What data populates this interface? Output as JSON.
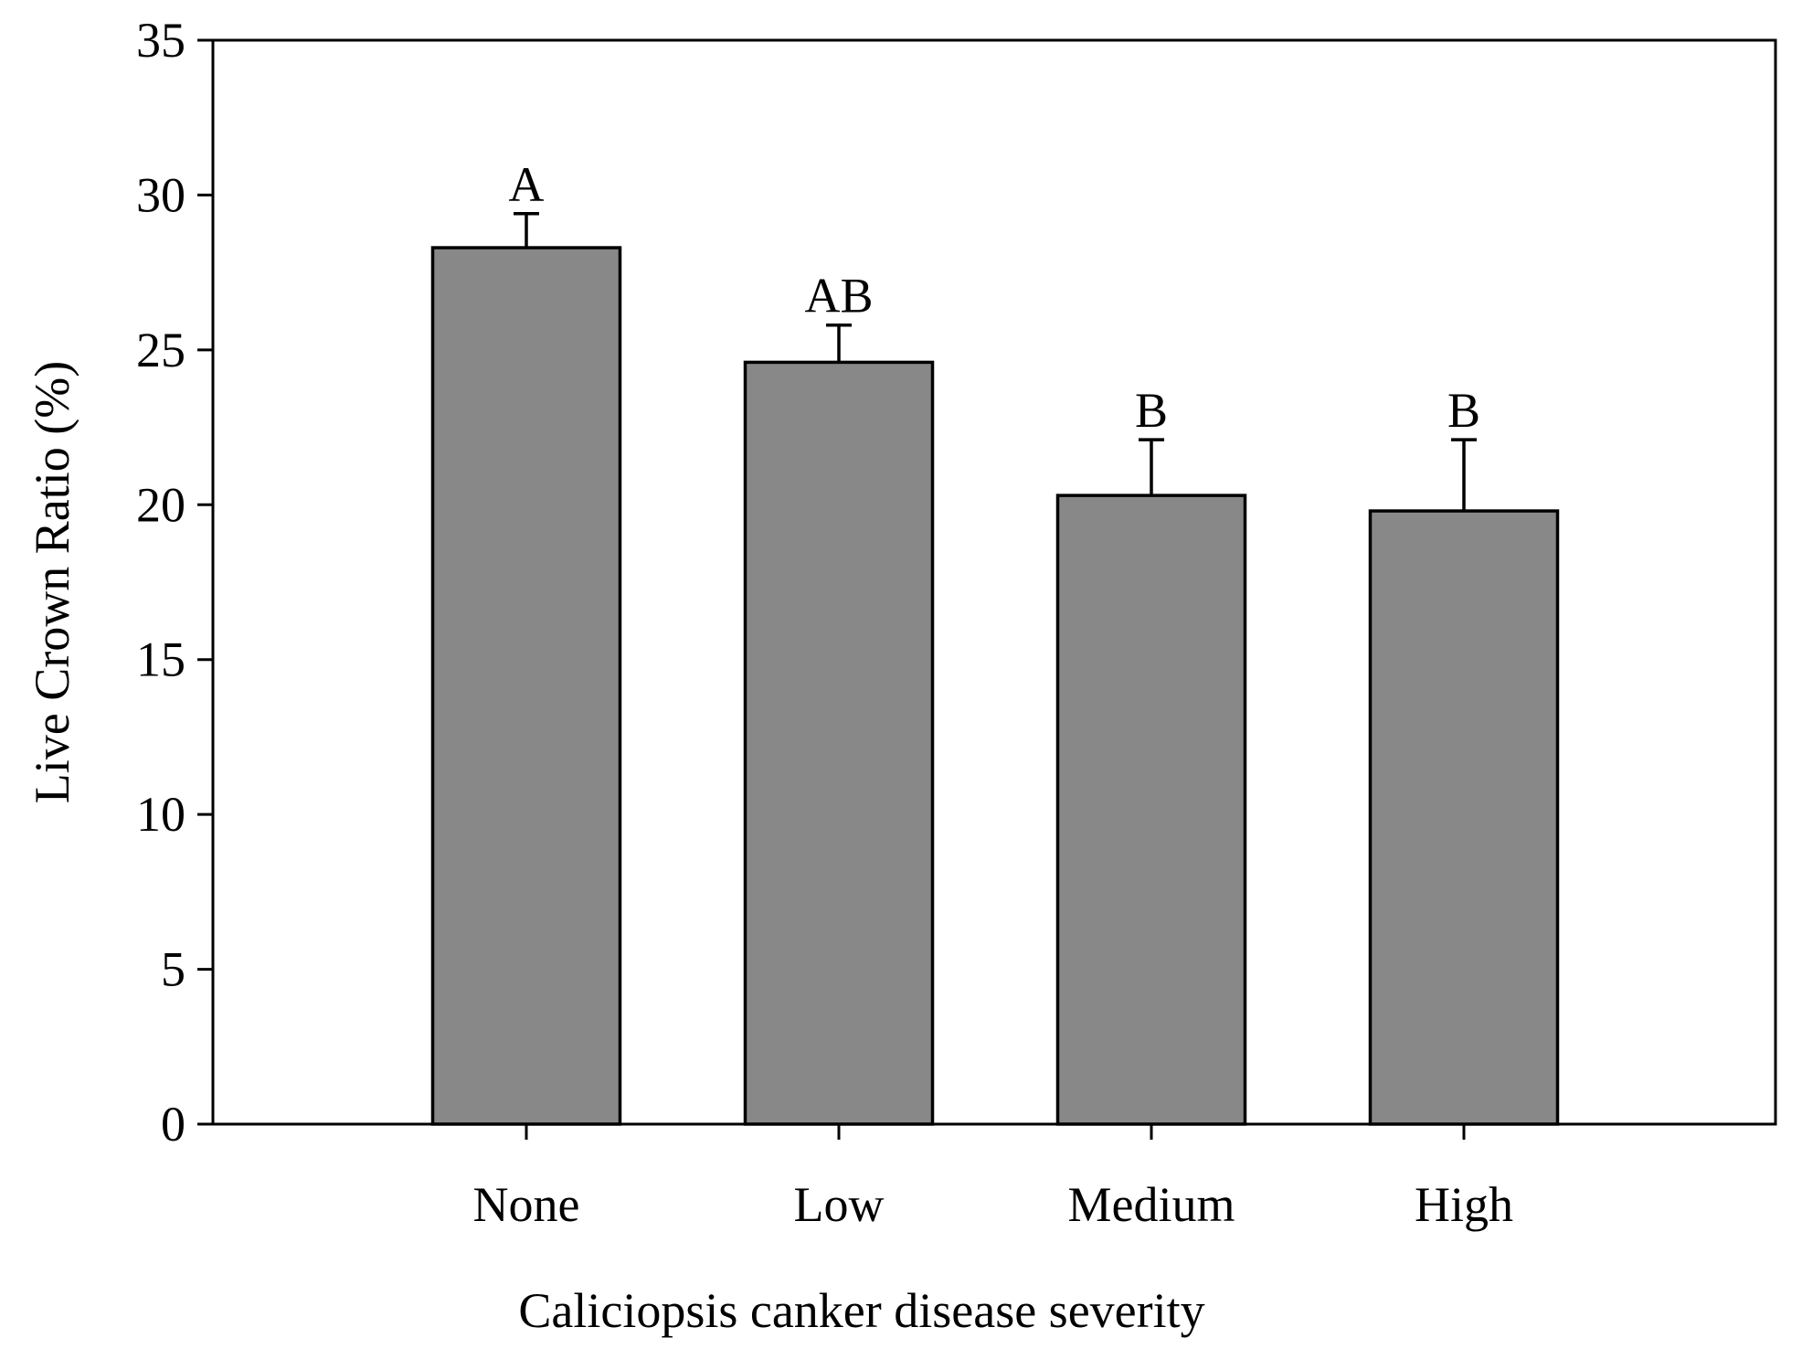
{
  "chart_data": {
    "type": "bar",
    "title": "",
    "xlabel": "Caliciopsis canker disease severity",
    "ylabel": "Live Crown Ratio (%)",
    "ylim": [
      0,
      35
    ],
    "yticks": [
      0,
      5,
      10,
      15,
      20,
      25,
      30,
      35
    ],
    "ytick_labels": [
      "0",
      "5",
      "10",
      "15",
      "20",
      "25",
      "30",
      "35"
    ],
    "categories": [
      "None",
      "Low",
      "Medium",
      "High"
    ],
    "values": [
      28.3,
      24.6,
      20.3,
      19.8
    ],
    "error_upper": [
      1.1,
      1.2,
      1.8,
      2.3
    ],
    "significance_labels": [
      "A",
      "AB",
      "B",
      "B"
    ],
    "bar_color": "#888888",
    "grid": false,
    "legend": "none"
  }
}
